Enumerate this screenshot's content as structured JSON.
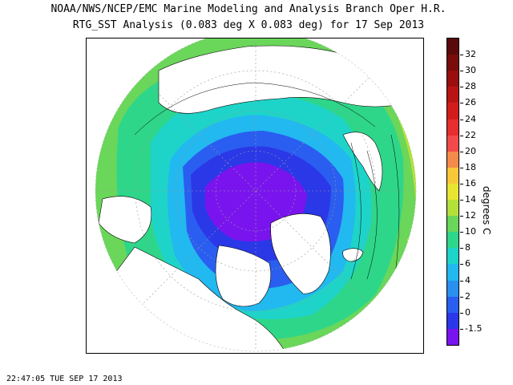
{
  "header": {
    "title_line1": "NOAA/NWS/NCEP/EMC Marine Modeling and Analysis Branch Oper H.R.",
    "title_line2": "RTG_SST Analysis (0.083 deg X 0.083 deg) for 17 Sep 2013"
  },
  "colorbar": {
    "units": "degrees C",
    "labels": [
      "32",
      "30",
      "28",
      "26",
      "24",
      "22",
      "20",
      "18",
      "16",
      "14",
      "12",
      "10",
      "8",
      "6",
      "4",
      "2",
      "0",
      "-1.5"
    ],
    "colors": [
      "#5a0a0a",
      "#7a0c0c",
      "#9a0e0e",
      "#b81414",
      "#d21c1c",
      "#e62e2e",
      "#f24a4a",
      "#f58a4a",
      "#f8c838",
      "#e8e432",
      "#b4e03a",
      "#6ad65a",
      "#2ed68a",
      "#1ed4c8",
      "#22b8f0",
      "#2a90f0",
      "#2a5ef0",
      "#2a38e8",
      "#7a14ee"
    ]
  },
  "map": {
    "projection": "north polar stereographic",
    "colors": {
      "land": "#ffffff",
      "ice": "#ffffff",
      "sst_coldest": "#7a14ee",
      "sst_polar": "#2a38e8",
      "sst_cold": "#2a5ef0",
      "sst_subpolar": "#22b8f0",
      "sst_cool": "#1ed4c8",
      "sst_mild": "#2ed68a",
      "sst_temperate": "#6ad65a",
      "sst_warm": "#b4e03a",
      "sst_warmer": "#e8e432",
      "coast": "#000000"
    }
  },
  "footer": {
    "timestamp": "22:47:05  TUE SEP 17 2013"
  }
}
